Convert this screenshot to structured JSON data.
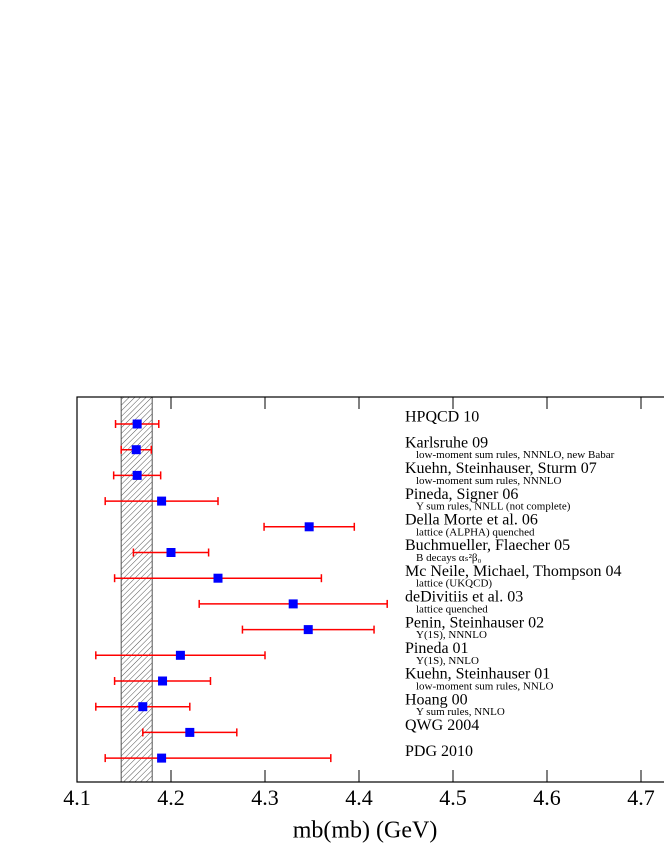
{
  "chart_data": {
    "type": "errorbar",
    "xlabel": "mb(mb) (GeV)",
    "categories": [
      "HPQCD 10",
      "Karlsruhe 09",
      "Kuehn, Steinhauser, Sturm 07",
      "Pineda, Signer 06",
      "Della Morte et al. 06",
      "Buchmueller, Flaecher 05",
      "Mc Neile, Michael, Thompson 04",
      "deDivitiis et al. 03",
      "Penin, Steinhauser 02",
      "Pineda 01",
      "Kuehn, Steinhauser 01",
      "Hoang 00",
      "QWG 2004",
      "PDG 2010"
    ],
    "sublabels": [
      null,
      "low-moment sum rules, NNNLO, new Babar",
      "low-moment sum rules, NNNLO",
      "Υ sum rules, NNLL (not complete)",
      "lattice (ALPHA) quenched",
      "B decays αₛ²β₀",
      "lattice (UKQCD)",
      "lattice quenched",
      "Υ(1S), NNNLO",
      "Υ(1S), NNLO",
      "low-moment sum rules, NNLO",
      "Υ sum rules, NNLO",
      null,
      null
    ],
    "values": [
      4.164,
      4.163,
      4.164,
      4.19,
      4.347,
      4.2,
      4.25,
      4.33,
      4.346,
      4.21,
      4.191,
      4.17,
      4.22,
      4.19
    ],
    "errors": [
      [
        0.023,
        0.023
      ],
      [
        0.016,
        0.016
      ],
      [
        0.025,
        0.025
      ],
      [
        0.06,
        0.06
      ],
      [
        0.048,
        0.048
      ],
      [
        0.04,
        0.04
      ],
      [
        0.11,
        0.11
      ],
      [
        0.1,
        0.1
      ],
      [
        0.07,
        0.07
      ],
      [
        0.09,
        0.09
      ],
      [
        0.051,
        0.051
      ],
      [
        0.05,
        0.05
      ],
      [
        0.05,
        0.05
      ],
      [
        0.06,
        0.18
      ]
    ],
    "band": [
      4.147,
      4.18
    ],
    "color": "#0000ff",
    "error_color": "#ff0000",
    "xlim": [
      4.1,
      4.75
    ],
    "xticks": [
      {
        "value": 4.1,
        "label": "4.1"
      },
      {
        "value": 4.2,
        "label": "4.2"
      },
      {
        "value": 4.3,
        "label": "4.3"
      },
      {
        "value": 4.4,
        "label": "4.4"
      },
      {
        "value": 4.5,
        "label": "4.5"
      },
      {
        "value": 4.6,
        "label": "4.6"
      },
      {
        "value": 4.7,
        "label": "4.7"
      }
    ]
  }
}
